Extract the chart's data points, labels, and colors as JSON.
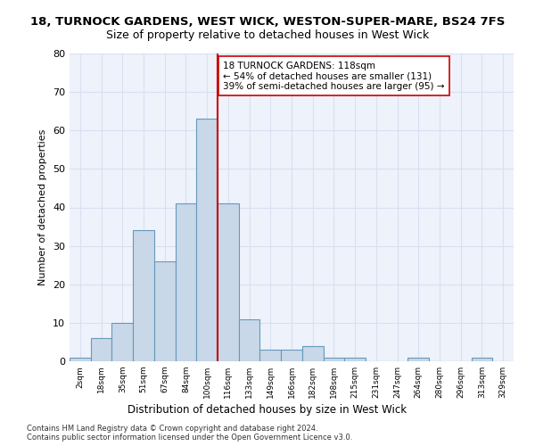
{
  "title1": "18, TURNOCK GARDENS, WEST WICK, WESTON-SUPER-MARE, BS24 7FS",
  "title2": "Size of property relative to detached houses in West Wick",
  "xlabel": "Distribution of detached houses by size in West Wick",
  "ylabel": "Number of detached properties",
  "bin_labels": [
    "2sqm",
    "18sqm",
    "35sqm",
    "51sqm",
    "67sqm",
    "84sqm",
    "100sqm",
    "116sqm",
    "133sqm",
    "149sqm",
    "166sqm",
    "182sqm",
    "198sqm",
    "215sqm",
    "231sqm",
    "247sqm",
    "264sqm",
    "280sqm",
    "296sqm",
    "313sqm",
    "329sqm"
  ],
  "bar_values": [
    1,
    6,
    10,
    34,
    26,
    41,
    63,
    41,
    11,
    3,
    3,
    4,
    1,
    1,
    0,
    0,
    1,
    0,
    0,
    1,
    0
  ],
  "bar_color": "#c8d8e8",
  "bar_edge_color": "#6699bb",
  "highlight_line_color": "#cc0000",
  "annotation_text": "18 TURNOCK GARDENS: 118sqm\n← 54% of detached houses are smaller (131)\n39% of semi-detached houses are larger (95) →",
  "annotation_box_color": "#ffffff",
  "annotation_box_edge": "#cc0000",
  "grid_color": "#d8e0f0",
  "background_color": "#eef2fb",
  "ylim": [
    0,
    80
  ],
  "yticks": [
    0,
    10,
    20,
    30,
    40,
    50,
    60,
    70,
    80
  ],
  "footer1": "Contains HM Land Registry data © Crown copyright and database right 2024.",
  "footer2": "Contains public sector information licensed under the Open Government Licence v3.0."
}
